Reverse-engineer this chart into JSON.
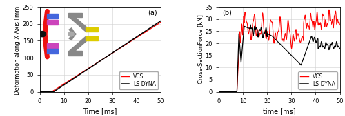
{
  "fig_width": 5.0,
  "fig_height": 1.69,
  "dpi": 100,
  "subplot_a": {
    "xlabel": "Time [ms]",
    "ylabel": "Deformation along X-Axis [mm]",
    "xlim": [
      0,
      50
    ],
    "ylim": [
      0,
      250
    ],
    "yticks": [
      0,
      50,
      100,
      150,
      200,
      250
    ],
    "xticks": [
      0,
      10,
      20,
      30,
      40,
      50
    ],
    "label": "(a)",
    "vcs_color": "#ff0000",
    "lsdyna_color": "#000000",
    "vcs_start_x": 5.0,
    "vcs_slope": 4.55,
    "lsdyna_start_x": 5.8,
    "lsdyna_slope": 4.72
  },
  "subplot_b": {
    "xlabel": "time [ms]",
    "ylabel": "Cross-SectionForce [kN]",
    "xlim": [
      0,
      50
    ],
    "ylim": [
      0,
      35
    ],
    "yticks": [
      0,
      5,
      10,
      15,
      20,
      25,
      30,
      35
    ],
    "xticks": [
      0,
      10,
      20,
      30,
      40,
      50
    ],
    "label": "(b)",
    "vcs_color": "#ff0000",
    "lsdyna_color": "#000000"
  },
  "inset": {
    "red_bar_color": "#ee1111",
    "blue_box_color": "#4466dd",
    "magenta_box_color": "#cc44bb",
    "gray_bar_color": "#888888",
    "yellow_box_color": "#ddcc00",
    "black_dot_color": "#111111",
    "gray_dot_color": "#aaaaaa"
  }
}
